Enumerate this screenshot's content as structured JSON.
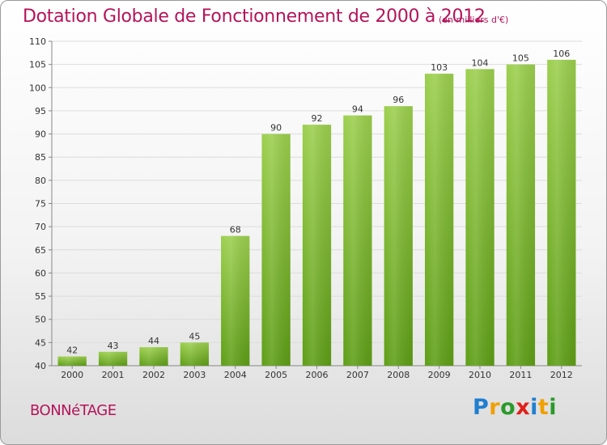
{
  "header": {
    "title": "Dotation Globale de Fonctionnement de 2000 à 2012",
    "subtitle": "(en milliers d'€)"
  },
  "footer": {
    "commune": "BONNéTAGE",
    "logo_letters": [
      {
        "char": "P",
        "color": "#1f7fd0"
      },
      {
        "char": "r",
        "color": "#f0a000"
      },
      {
        "char": "o",
        "color": "#2a9a2a"
      },
      {
        "char": "x",
        "color": "#e0201a"
      },
      {
        "char": "i",
        "color": "#1f7fd0"
      },
      {
        "char": "t",
        "color": "#f0a000"
      },
      {
        "char": "i",
        "color": "#2a9a2a"
      }
    ]
  },
  "colors": {
    "title": "#b4145a",
    "bar_top": "#9ccf4e",
    "bar_bottom": "#5e9e16",
    "grid": "#dcdcdc"
  },
  "chart_data": {
    "type": "bar",
    "title": "Dotation Globale de Fonctionnement de 2000 à 2012",
    "subtitle": "(en milliers d'€)",
    "categories": [
      "2000",
      "2001",
      "2002",
      "2003",
      "2004",
      "2005",
      "2006",
      "2007",
      "2008",
      "2009",
      "2010",
      "2011",
      "2012"
    ],
    "values": [
      42,
      43,
      44,
      45,
      68,
      90,
      92,
      94,
      96,
      103,
      104,
      105,
      106
    ],
    "ylim": [
      40,
      110
    ],
    "yticks": [
      40,
      45,
      50,
      55,
      60,
      65,
      70,
      75,
      80,
      85,
      90,
      95,
      100,
      105,
      110
    ],
    "grid": true,
    "data_labels": true
  }
}
